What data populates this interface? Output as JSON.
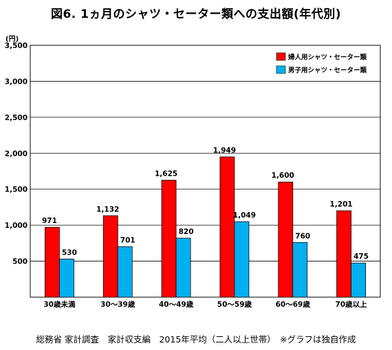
{
  "chart_data": {
    "type": "bar",
    "title": "図6. 1ヵ月のシャツ・セーター類への支出額(年代別)",
    "unit_label": "(円)",
    "categories": [
      "30歳未満",
      "30～39歳",
      "40～49歳",
      "50～59歳",
      "60～69歳",
      "70歳以上"
    ],
    "series": [
      {
        "name": "婦人用シャツ・セーター類",
        "color": "#ff0000",
        "values": [
          971,
          1132,
          1625,
          1949,
          1600,
          1201
        ],
        "labels": [
          "971",
          "1,132",
          "1,625",
          "1,949",
          "1,600",
          "1,201"
        ]
      },
      {
        "name": "男子用シャツ・セーター類",
        "color": "#00b0f0",
        "values": [
          530,
          701,
          820,
          1049,
          760,
          475
        ],
        "labels": [
          "530",
          "701",
          "820",
          "1,049",
          "760",
          "475"
        ]
      }
    ],
    "ylim": [
      0,
      3500
    ],
    "yticks": [
      500,
      1000,
      1500,
      2000,
      2500,
      3000,
      3500
    ],
    "ytick_labels": [
      "500",
      "1,000",
      "1,500",
      "2,000",
      "2,500",
      "3,000",
      "3,500"
    ],
    "grid": true,
    "legend_position": "top-right"
  },
  "footer": "総務省 家計調査　家計収支編　2015年平均（二人以上世帯）　※グラフは独自作成"
}
